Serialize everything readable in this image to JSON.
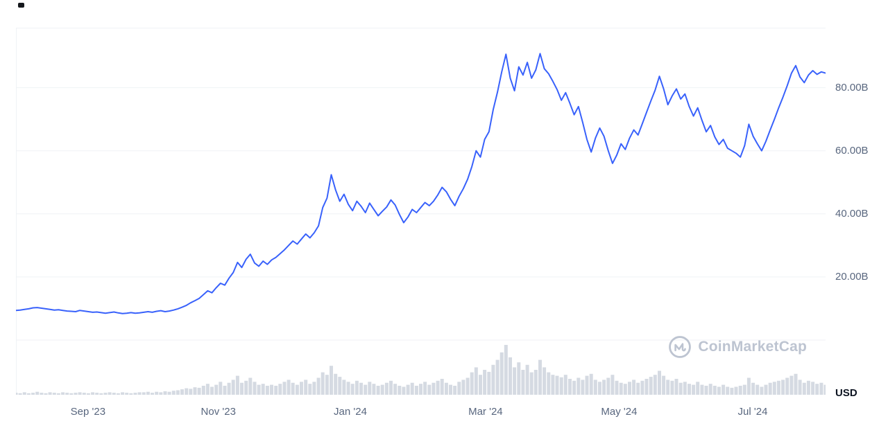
{
  "watermark": {
    "text": "CoinMarketCap"
  },
  "colors": {
    "background": "#ffffff",
    "line": "#3861fb",
    "grid": "#eff2f5",
    "volume_bar": "#d5dae2",
    "tick_label": "#58667e",
    "currency_label": "#0d1421",
    "watermark": "#bdc4d1"
  },
  "chart_data": {
    "type": "line",
    "title": "",
    "xlabel": "",
    "ylabel": "USD",
    "unit": "B",
    "ylim": [
      0,
      99
    ],
    "grid": "horizontal",
    "legend": "none",
    "y_ticks": [
      {
        "value": 80,
        "label": "80.00B"
      },
      {
        "value": 60,
        "label": "60.00B"
      },
      {
        "value": 40,
        "label": "40.00B"
      },
      {
        "value": 20,
        "label": "20.00B"
      }
    ],
    "x_ticks": [
      {
        "label": "Sep '23",
        "pos": 0.089
      },
      {
        "label": "Nov '23",
        "pos": 0.25
      },
      {
        "label": "Jan '24",
        "pos": 0.413
      },
      {
        "label": "Mar '24",
        "pos": 0.58
      },
      {
        "label": "May '24",
        "pos": 0.745
      },
      {
        "label": "Jul '24",
        "pos": 0.91
      }
    ],
    "series": [
      {
        "name": "market-cap-usd-billions",
        "type": "line",
        "values": [
          9.4,
          9.5,
          9.7,
          9.9,
          10.2,
          10.3,
          10.1,
          9.9,
          9.7,
          9.5,
          9.6,
          9.4,
          9.2,
          9.1,
          9.0,
          9.4,
          9.2,
          9.0,
          8.8,
          8.9,
          8.7,
          8.5,
          8.7,
          8.9,
          8.6,
          8.4,
          8.5,
          8.7,
          8.5,
          8.6,
          8.8,
          9.0,
          8.8,
          9.1,
          9.3,
          9.0,
          9.2,
          9.5,
          9.9,
          10.4,
          11.0,
          11.8,
          12.5,
          13.2,
          14.4,
          15.6,
          15.0,
          16.6,
          18.0,
          17.4,
          19.6,
          21.4,
          24.6,
          23.0,
          25.6,
          27.2,
          24.4,
          23.4,
          25.0,
          24.0,
          25.4,
          26.2,
          27.4,
          28.6,
          30.0,
          31.4,
          30.4,
          32.0,
          33.6,
          32.4,
          34.0,
          36.2,
          42.0,
          45.0,
          52.4,
          47.6,
          44.0,
          46.2,
          43.0,
          41.0,
          44.0,
          42.4,
          40.4,
          43.4,
          41.4,
          39.4,
          40.8,
          42.2,
          44.4,
          42.8,
          39.8,
          37.2,
          39.0,
          41.4,
          40.4,
          42.0,
          43.6,
          42.6,
          44.0,
          46.0,
          48.4,
          47.0,
          44.6,
          42.6,
          45.6,
          48.0,
          51.0,
          55.0,
          60.0,
          58.0,
          63.6,
          66.0,
          73.0,
          78.6,
          85.0,
          90.6,
          83.0,
          79.0,
          86.6,
          84.0,
          88.0,
          83.0,
          85.6,
          90.8,
          86.0,
          84.4,
          82.0,
          79.4,
          76.0,
          78.4,
          75.0,
          71.4,
          74.0,
          69.0,
          63.6,
          59.6,
          64.0,
          67.2,
          64.6,
          60.0,
          56.0,
          58.6,
          62.2,
          60.4,
          64.0,
          66.6,
          65.0,
          68.6,
          72.2,
          75.8,
          79.2,
          83.6,
          79.6,
          74.6,
          77.4,
          79.6,
          76.4,
          78.0,
          74.0,
          71.0,
          73.6,
          69.6,
          66.0,
          68.0,
          64.4,
          62.0,
          63.6,
          60.8,
          60.0,
          59.2,
          58.0,
          61.6,
          68.4,
          64.6,
          62.2,
          60.0,
          63.0,
          66.6,
          70.0,
          73.6,
          77.0,
          80.6,
          84.6,
          87.0,
          83.4,
          81.6,
          84.0,
          85.4,
          84.2,
          85.0,
          84.6
        ]
      },
      {
        "name": "volume-relative",
        "type": "bar",
        "scale": "relative-0-100",
        "values": [
          4,
          3,
          5,
          3,
          4,
          6,
          4,
          3,
          5,
          4,
          3,
          5,
          4,
          3,
          4,
          5,
          4,
          3,
          5,
          4,
          3,
          4,
          5,
          4,
          3,
          5,
          4,
          3,
          4,
          5,
          5,
          6,
          4,
          6,
          5,
          7,
          6,
          8,
          9,
          11,
          13,
          12,
          15,
          14,
          18,
          22,
          16,
          20,
          26,
          18,
          24,
          30,
          38,
          24,
          28,
          34,
          26,
          20,
          22,
          18,
          20,
          18,
          22,
          26,
          30,
          24,
          20,
          26,
          30,
          22,
          26,
          34,
          45,
          40,
          58,
          42,
          36,
          30,
          26,
          22,
          28,
          24,
          20,
          26,
          22,
          18,
          20,
          24,
          28,
          22,
          18,
          16,
          20,
          24,
          18,
          22,
          26,
          20,
          24,
          28,
          32,
          24,
          20,
          18,
          26,
          30,
          34,
          45,
          55,
          40,
          50,
          46,
          60,
          70,
          85,
          100,
          75,
          55,
          65,
          50,
          60,
          45,
          50,
          70,
          55,
          45,
          40,
          38,
          35,
          40,
          32,
          28,
          34,
          30,
          38,
          42,
          30,
          26,
          30,
          34,
          40,
          28,
          24,
          22,
          26,
          30,
          24,
          28,
          32,
          36,
          40,
          48,
          38,
          30,
          28,
          32,
          24,
          26,
          22,
          20,
          26,
          20,
          18,
          22,
          18,
          16,
          20,
          16,
          14,
          16,
          18,
          20,
          34,
          24,
          20,
          16,
          20,
          24,
          26,
          28,
          30,
          34,
          38,
          42,
          30,
          24,
          28,
          26,
          22,
          24,
          20
        ]
      }
    ]
  }
}
